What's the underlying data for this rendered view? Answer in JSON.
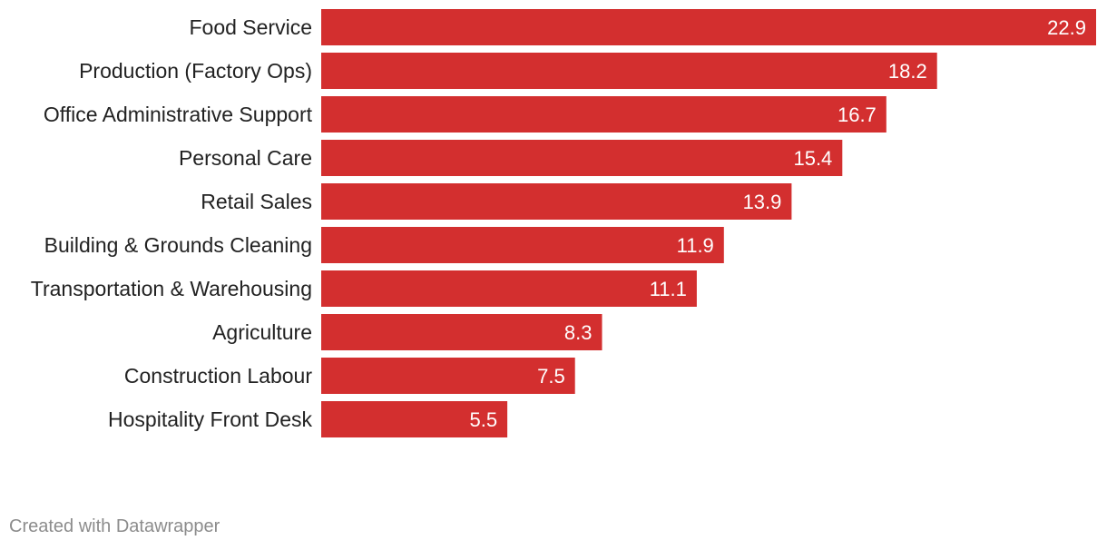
{
  "chart_data": {
    "type": "bar",
    "orientation": "horizontal",
    "categories": [
      "Food Service",
      "Production (Factory Ops)",
      "Office Administrative Support",
      "Personal Care",
      "Retail Sales",
      "Building & Grounds Cleaning",
      "Transportation & Warehousing",
      "Agriculture",
      "Construction Labour",
      "Hospitality Front Desk"
    ],
    "values": [
      22.9,
      18.2,
      16.7,
      15.4,
      13.9,
      11.9,
      11.1,
      8.3,
      7.5,
      5.5
    ],
    "value_labels": [
      "22.9",
      "18.2",
      "16.7",
      "15.4",
      "13.9",
      "11.9",
      "11.1",
      "8.3",
      "7.5",
      "5.5"
    ],
    "xlim": [
      0,
      22.9
    ],
    "grid": false,
    "bar_color": "#d32f2f"
  },
  "footer": {
    "credit": "Created with Datawrapper"
  }
}
